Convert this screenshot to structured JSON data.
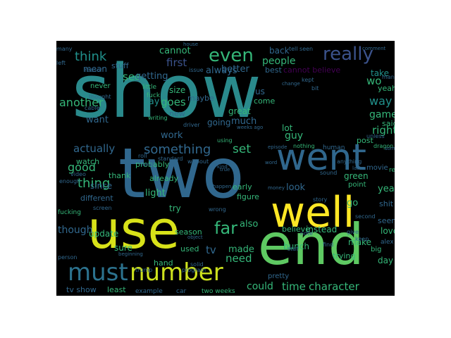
{
  "words": {
    "show": "show",
    "two": "two",
    "went": "went",
    "use": "use",
    "end": "end",
    "well": "well",
    "must": "must",
    "number": "number",
    "really": "really",
    "even": "even",
    "think": "think",
    "cannot": "cannot",
    "first": "first",
    "always": "always",
    "better": "better",
    "people": "people",
    "cannot_believe": "cannot believe",
    "best": "best",
    "take": "take",
    "yeah": "yeah",
    "mean": "mean",
    "stuff": "stuff",
    "see": "see",
    "getting": "getting",
    "way": "way",
    "game": "game",
    "said": "said",
    "right": "right",
    "another": "another",
    "want": "want",
    "say": "say",
    "goes": "goes",
    "new": "new",
    "work": "work",
    "going": "going",
    "great": "great",
    "guy": "guy",
    "lot": "lot",
    "post": "post",
    "something": "something",
    "set": "set",
    "actually": "actually",
    "good": "good",
    "thing": "thing",
    "since": "since",
    "different": "different",
    "thank": "thank",
    "light": "light",
    "year": "year",
    "go": "go",
    "green": "green",
    "far": "far",
    "look": "look",
    "shit": "shit",
    "though": "though",
    "update": "update",
    "also": "also",
    "believe": "believe",
    "instead": "instead",
    "love": "love",
    "tv": "tv",
    "made": "made",
    "need": "need",
    "bunch": "bunch",
    "make": "make",
    "day": "day",
    "could": "could",
    "time": "time",
    "character": "character",
    "least": "least",
    "tv_show": "tv show",
    "two_weeks": "two weeks",
    "hand": "hand",
    "used": "used",
    "sure": "sure",
    "early": "early",
    "figure": "figure",
    "point": "point",
    "trying": "trying",
    "seem": "seem",
    "movie": "movie",
    "watch": "watch",
    "probably": "probably",
    "already": "already",
    "try": "try",
    "season": "season",
    "never": "never",
    "size": "size",
    "much": "much",
    "us": "us",
    "come": "come",
    "maybe": "maybe",
    "back": "back",
    "tell_seen": "tell seen",
    "fuck": "fuck",
    "alex_jones": "alex jones",
    "pretty": "pretty",
    "big": "big",
    "instead_small": "second",
    "human": "human",
    "read": "read",
    "example": "example",
    "car": "car",
    "trump": "trump",
    "program": "program",
    "person": "person",
    "fucking": "fucking",
    "little": "little",
    "reason": "reason",
    "thought": "thought",
    "cable": "cable",
    "writing": "writing",
    "driver": "driver",
    "using": "using",
    "nothing": "nothing",
    "dragon": "dragon",
    "unless": "unless",
    "sound": "sound",
    "kept": "kept",
    "bit": "bit",
    "issue": "issue",
    "change": "change",
    "episode": "episode",
    "find": "find",
    "stat": "stat",
    "story": "story",
    "screen": "screen",
    "video": "video",
    "enough": "enough",
    "roll": "roll",
    "long": "long",
    "standard": "standard",
    "without": "without",
    "happen": "happen",
    "wrong": "wrong",
    "solid": "solid",
    "beginning": "beginning",
    "object": "object",
    "note": "note",
    "keep": "keep",
    "give": "give",
    "many": "many",
    "left": "left",
    "anything": "anything",
    "kind": "kind",
    "weeks_ago": "weeks ago",
    "word": "word",
    "money": "money",
    "later": "later",
    "saw": "saw",
    "comment": "comment",
    "someone": "someone",
    "place": "place",
    "friend": "friend",
    "man": "man",
    "true": "true",
    "able": "able",
    "seen": "seen",
    "house": "house",
    "whole": "whole",
    "end_small": "end",
    "wo": "wo"
  }
}
